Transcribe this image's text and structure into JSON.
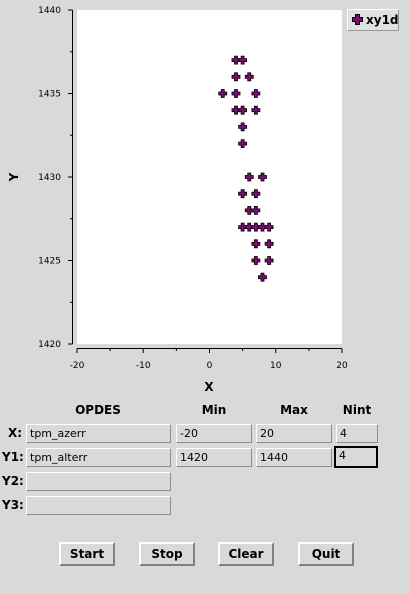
{
  "chart_data": {
    "type": "scatter",
    "xlabel": "X",
    "ylabel": "Y",
    "xlim": [
      -20,
      20
    ],
    "ylim": [
      1420,
      1440
    ],
    "x_ticks": [
      -20,
      -10,
      0,
      10,
      20
    ],
    "y_ticks": [
      1420,
      1425,
      1430,
      1435,
      1440
    ],
    "x_tick_labels": [
      "-20",
      "-10",
      "0",
      "10",
      "20"
    ],
    "y_tick_labels": [
      "1420",
      "1425",
      "1430",
      "1435",
      "1440"
    ],
    "legend": "top-right",
    "grid": false,
    "series": [
      {
        "name": "xy1d",
        "color": "#7a0c6e",
        "points": [
          [
            4,
            1437
          ],
          [
            5,
            1437
          ],
          [
            4,
            1436
          ],
          [
            6,
            1436
          ],
          [
            2,
            1435
          ],
          [
            4,
            1435
          ],
          [
            7,
            1435
          ],
          [
            4,
            1434
          ],
          [
            5,
            1434
          ],
          [
            7,
            1434
          ],
          [
            5,
            1433
          ],
          [
            5,
            1432
          ],
          [
            6,
            1430
          ],
          [
            8,
            1430
          ],
          [
            5,
            1429
          ],
          [
            7,
            1429
          ],
          [
            6,
            1428
          ],
          [
            7,
            1428
          ],
          [
            5,
            1427
          ],
          [
            6,
            1427
          ],
          [
            7,
            1427
          ],
          [
            8,
            1427
          ],
          [
            9,
            1427
          ],
          [
            7,
            1426
          ],
          [
            9,
            1426
          ],
          [
            7,
            1425
          ],
          [
            9,
            1425
          ],
          [
            8,
            1424
          ]
        ]
      }
    ]
  },
  "form": {
    "headers": {
      "opdes": "OPDES",
      "min": "Min",
      "max": "Max",
      "nint": "Nint"
    },
    "rows": [
      {
        "label": "X:",
        "opdes": "tpm_azerr",
        "min": "-20",
        "max": "20",
        "nint": "4"
      },
      {
        "label": "Y1:",
        "opdes": "tpm_alterr",
        "min": "1420",
        "max": "1440",
        "nint": "4"
      },
      {
        "label": "Y2:",
        "opdes": ""
      },
      {
        "label": "Y3:",
        "opdes": ""
      }
    ]
  },
  "buttons": {
    "start": "Start",
    "stop": "Stop",
    "clear": "Clear",
    "quit": "Quit"
  }
}
